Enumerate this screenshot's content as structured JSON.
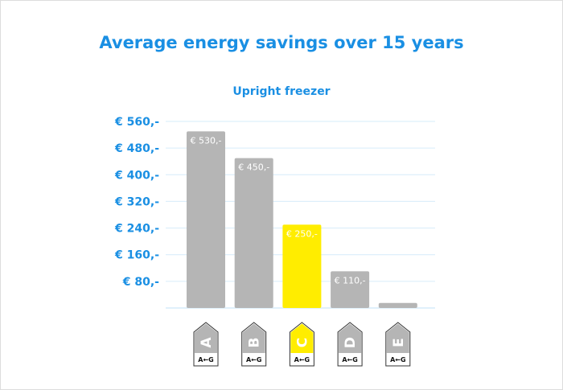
{
  "chart_data": {
    "type": "bar",
    "title": "Average energy savings over 15 years",
    "subtitle": "Upright freezer",
    "categories": [
      "A",
      "B",
      "C",
      "D",
      "E"
    ],
    "values": [
      530,
      450,
      250,
      110,
      15
    ],
    "data_labels": [
      "€ 530,-",
      "€ 450,-",
      "€ 250,-",
      "€ 110,-",
      ""
    ],
    "yticks": [
      80,
      160,
      240,
      320,
      400,
      480,
      560
    ],
    "ytick_labels": [
      "€ 80,-",
      "€ 160,-",
      "€ 240,-",
      "€ 320,-",
      "€ 400,-",
      "€ 480,-",
      "€ 560,-"
    ],
    "ylim": [
      0,
      560
    ],
    "grid": true,
    "highlight_category": "C",
    "energy_label_scale": "A←G",
    "colors": {
      "bar": "#b5b5b5",
      "highlight": "#ffed00",
      "text": "#1a8fe3",
      "grid": "#d6ecfa"
    }
  }
}
